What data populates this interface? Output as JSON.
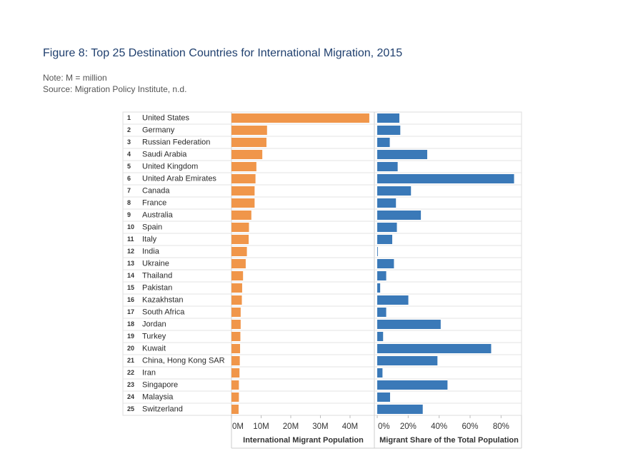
{
  "figure": {
    "title": "Figure 8: Top 25 Destination Countries for International Migration, 2015",
    "note": "Note: M = million",
    "source": "Source: Migration Policy Institute, n.d."
  },
  "chart_data": [
    {
      "type": "bar",
      "orientation": "horizontal",
      "xlabel": "International Migrant Population",
      "color": "#f0964a",
      "ranks": [
        "1",
        "2",
        "3",
        "4",
        "5",
        "6",
        "7",
        "8",
        "9",
        "10",
        "11",
        "12",
        "13",
        "14",
        "15",
        "16",
        "17",
        "18",
        "19",
        "20",
        "21",
        "22",
        "23",
        "24",
        "25"
      ],
      "categories": [
        "United States",
        "Germany",
        "Russian Federation",
        "Saudi Arabia",
        "United Kingdom",
        "United Arab Emirates",
        "Canada",
        "France",
        "Australia",
        "Spain",
        "Italy",
        "India",
        "Ukraine",
        "Thailand",
        "Pakistan",
        "Kazakhstan",
        "South Africa",
        "Jordan",
        "Turkey",
        "Kuwait",
        "China, Hong Kong SAR",
        "Iran",
        "Singapore",
        "Malaysia",
        "Switzerland"
      ],
      "values": [
        46.5,
        12.0,
        11.8,
        10.4,
        8.4,
        8.1,
        7.8,
        7.8,
        6.7,
        5.9,
        5.8,
        5.2,
        4.8,
        3.9,
        3.6,
        3.5,
        3.1,
        3.1,
        3.0,
        2.9,
        2.8,
        2.7,
        2.5,
        2.5,
        2.4
      ],
      "xlim": [
        0,
        47
      ],
      "xticks": [
        {
          "value": 0,
          "label": "0M"
        },
        {
          "value": 10,
          "label": "10M"
        },
        {
          "value": 20,
          "label": "20M"
        },
        {
          "value": 30,
          "label": "30M"
        },
        {
          "value": 40,
          "label": "40M"
        }
      ]
    },
    {
      "type": "bar",
      "orientation": "horizontal",
      "xlabel": "Migrant Share of the Total Population",
      "color": "#3a79b8",
      "values": [
        14.3,
        14.9,
        8.1,
        32.3,
        13.2,
        88.4,
        21.8,
        12.1,
        28.2,
        12.7,
        9.7,
        0.4,
        10.8,
        5.8,
        1.9,
        20.1,
        5.8,
        41.0,
        3.8,
        73.6,
        38.9,
        3.4,
        45.4,
        8.3,
        29.4
      ],
      "xlim": [
        0,
        90
      ],
      "xticks": [
        {
          "value": 0,
          "label": "0%"
        },
        {
          "value": 20,
          "label": "20%"
        },
        {
          "value": 40,
          "label": "40%"
        },
        {
          "value": 60,
          "label": "60%"
        },
        {
          "value": 80,
          "label": "80%"
        }
      ]
    }
  ]
}
